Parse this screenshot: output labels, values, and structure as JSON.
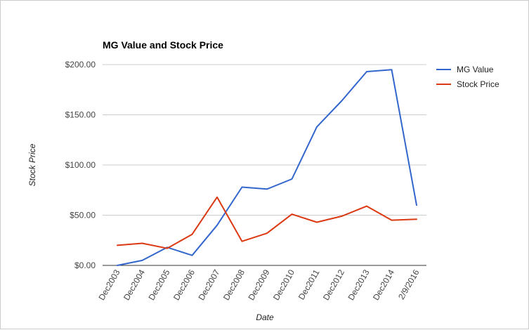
{
  "chart_data": {
    "type": "line",
    "title": "MG Value and Stock Price",
    "xlabel": "Date",
    "ylabel": "Stock Price",
    "categories": [
      "Dec2003",
      "Dec2004",
      "Dec2005",
      "Dec2006",
      "Dec2007",
      "Dec2008",
      "Dec2009",
      "Dec2010",
      "Dec2011",
      "Dec2012",
      "Dec2013",
      "Dec2014",
      "2/9/2016"
    ],
    "series": [
      {
        "name": "MG Value",
        "color": "#3366cc",
        "values": [
          0,
          5,
          18,
          10,
          40,
          78,
          76,
          86,
          138,
          164,
          193,
          195,
          60
        ]
      },
      {
        "name": "Stock Price",
        "color": "#dc3912",
        "values": [
          20,
          22,
          17,
          31,
          68,
          24,
          32,
          51,
          43,
          49,
          59,
          45,
          46
        ]
      }
    ],
    "ylim": [
      0,
      200
    ],
    "yticks": [
      0,
      50,
      100,
      150,
      200
    ],
    "ytick_labels": [
      "$0.00",
      "$50.00",
      "$100.00",
      "$150.00",
      "$200.00"
    ],
    "grid": true,
    "legend": "right"
  }
}
